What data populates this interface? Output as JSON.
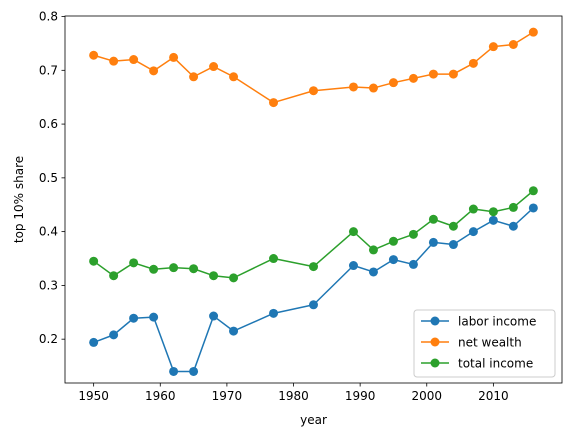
{
  "chart_data": {
    "type": "line",
    "title": "",
    "xlabel": "year",
    "ylabel": "top 10% share",
    "xlim": [
      1945.7,
      2020.3
    ],
    "ylim": [
      0.1185,
      0.801
    ],
    "xticks": [
      1950,
      1960,
      1970,
      1980,
      1990,
      2000,
      2010
    ],
    "yticks": [
      0.2,
      0.3,
      0.4,
      0.5,
      0.6,
      0.7,
      0.8
    ],
    "grid": false,
    "legend_position": "lower-right",
    "series": [
      {
        "name": "labor income",
        "color": "#1f77b4",
        "x": [
          1950,
          1953,
          1956,
          1959,
          1962,
          1965,
          1968,
          1971,
          1977,
          1983,
          1989,
          1992,
          1995,
          1998,
          2001,
          2004,
          2007,
          2010,
          2013,
          2016
        ],
        "y": [
          0.194,
          0.208,
          0.239,
          0.241,
          0.14,
          0.14,
          0.243,
          0.215,
          0.248,
          0.264,
          0.337,
          0.325,
          0.348,
          0.339,
          0.38,
          0.376,
          0.4,
          0.421,
          0.41,
          0.444
        ]
      },
      {
        "name": "net wealth",
        "color": "#ff7f0e",
        "x": [
          1950,
          1953,
          1956,
          1959,
          1962,
          1965,
          1968,
          1971,
          1977,
          1983,
          1989,
          1992,
          1995,
          1998,
          2001,
          2004,
          2007,
          2010,
          2013,
          2016
        ],
        "y": [
          0.728,
          0.717,
          0.72,
          0.699,
          0.724,
          0.688,
          0.707,
          0.688,
          0.64,
          0.662,
          0.669,
          0.667,
          0.677,
          0.685,
          0.693,
          0.693,
          0.713,
          0.744,
          0.748,
          0.771
        ]
      },
      {
        "name": "total income",
        "color": "#2ca02c",
        "x": [
          1950,
          1953,
          1956,
          1959,
          1962,
          1965,
          1968,
          1971,
          1977,
          1983,
          1989,
          1992,
          1995,
          1998,
          2001,
          2004,
          2007,
          2010,
          2013,
          2016
        ],
        "y": [
          0.345,
          0.318,
          0.342,
          0.33,
          0.333,
          0.331,
          0.318,
          0.314,
          0.35,
          0.335,
          0.4,
          0.366,
          0.382,
          0.395,
          0.423,
          0.41,
          0.442,
          0.437,
          0.445,
          0.476
        ]
      }
    ]
  }
}
